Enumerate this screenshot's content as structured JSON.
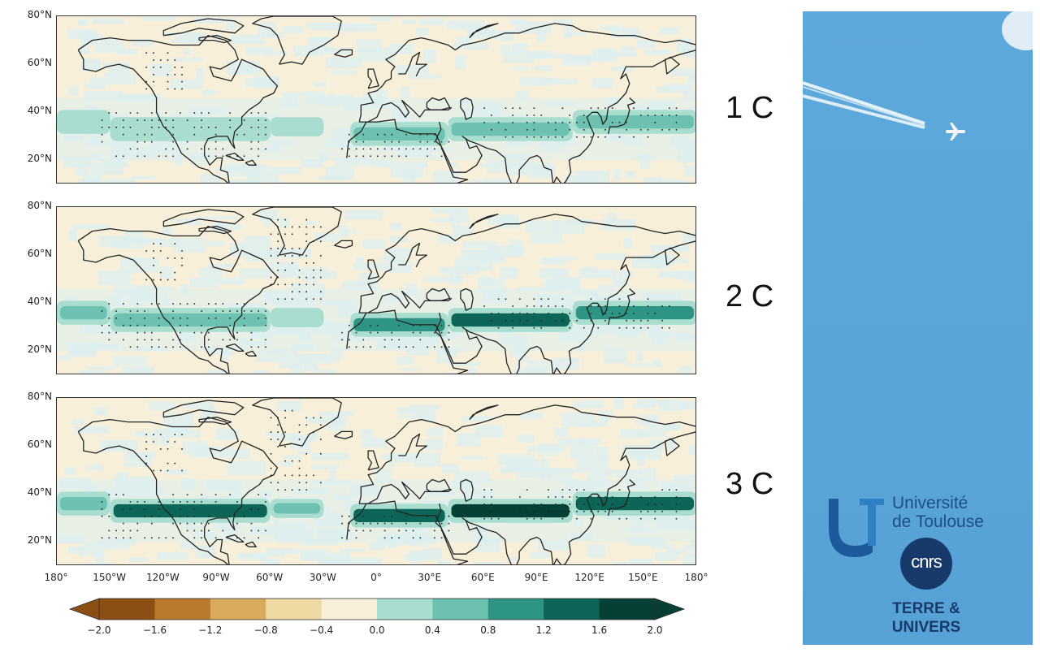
{
  "panels": [
    {
      "label": "1 C",
      "band_strength": 0.55
    },
    {
      "label": "2 C",
      "band_strength": 0.8
    },
    {
      "label": "3 C",
      "band_strength": 1.0
    }
  ],
  "lat_ticks": [
    "80°N",
    "60°N",
    "40°N",
    "20°N"
  ],
  "lon_ticks": [
    "180°",
    "150°W",
    "120°W",
    "90°W",
    "60°W",
    "30°W",
    "0°",
    "30°E",
    "60°E",
    "90°E",
    "120°E",
    "150°E",
    "180°"
  ],
  "colorbar": {
    "ticks": [
      "−2.0",
      "−1.6",
      "−1.2",
      "−0.8",
      "−0.4",
      "0.0",
      "0.4",
      "0.8",
      "1.2",
      "1.6",
      "2.0"
    ],
    "colors": [
      "#8b4e13",
      "#b8782d",
      "#d8aa5c",
      "#efd9a3",
      "#f7efd9",
      "#dcefef",
      "#a9ddd0",
      "#6cc1b0",
      "#2e9584",
      "#0c6556",
      "#063f35"
    ]
  },
  "logo": {
    "university_line1": "Université",
    "university_line2": "de Toulouse",
    "cnrs": "cnrs",
    "terre_line1": "TERRE &",
    "terre_line2": "UNIVERS"
  }
}
